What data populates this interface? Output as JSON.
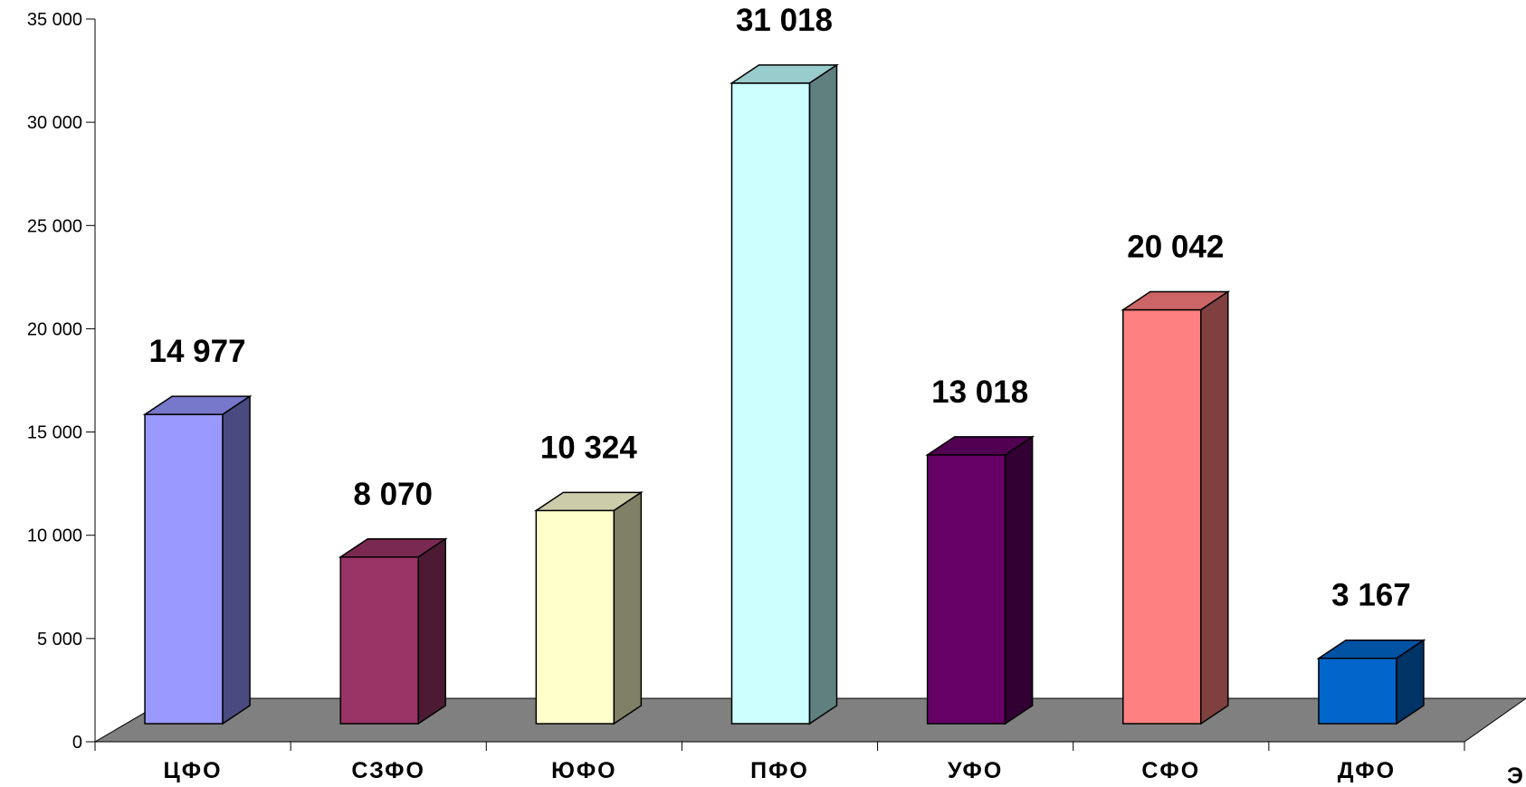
{
  "chart_data": {
    "type": "bar",
    "title": "",
    "xlabel": "",
    "ylabel": "",
    "categories": [
      "ЦФО",
      "СЗФО",
      "ЮФО",
      "ПФО",
      "УФО",
      "СФО",
      "ДФО"
    ],
    "values": [
      14977,
      8070,
      10324,
      31018,
      13018,
      20042,
      3167
    ],
    "data_labels": [
      "14 977",
      "8 070",
      "10 324",
      "31 018",
      "13 018",
      "20 042",
      "3 167"
    ],
    "ylim": [
      0,
      35000
    ],
    "yticks": [
      0,
      5000,
      10000,
      15000,
      20000,
      25000,
      30000,
      35000
    ],
    "ytick_labels": [
      "0",
      "5 000",
      "10 000",
      "15 000",
      "20 000",
      "25 000",
      "30 000",
      "35 000"
    ],
    "grid": false,
    "style": "3d-column",
    "bar_colors": [
      {
        "front": "#9999ff",
        "top": "#7777cc",
        "side": "#4a4a80"
      },
      {
        "front": "#993366",
        "top": "#7a2952",
        "side": "#4d1a33"
      },
      {
        "front": "#ffffcc",
        "top": "#ccccaa",
        "side": "#808066"
      },
      {
        "front": "#ccffff",
        "top": "#99cccc",
        "side": "#608080"
      },
      {
        "front": "#660066",
        "top": "#520052",
        "side": "#330033"
      },
      {
        "front": "#ff8080",
        "top": "#cc6666",
        "side": "#804040"
      },
      {
        "front": "#0066cc",
        "top": "#0052a3",
        "side": "#003366"
      }
    ],
    "floor_color": "#808080"
  },
  "edge_glyph": "Э"
}
